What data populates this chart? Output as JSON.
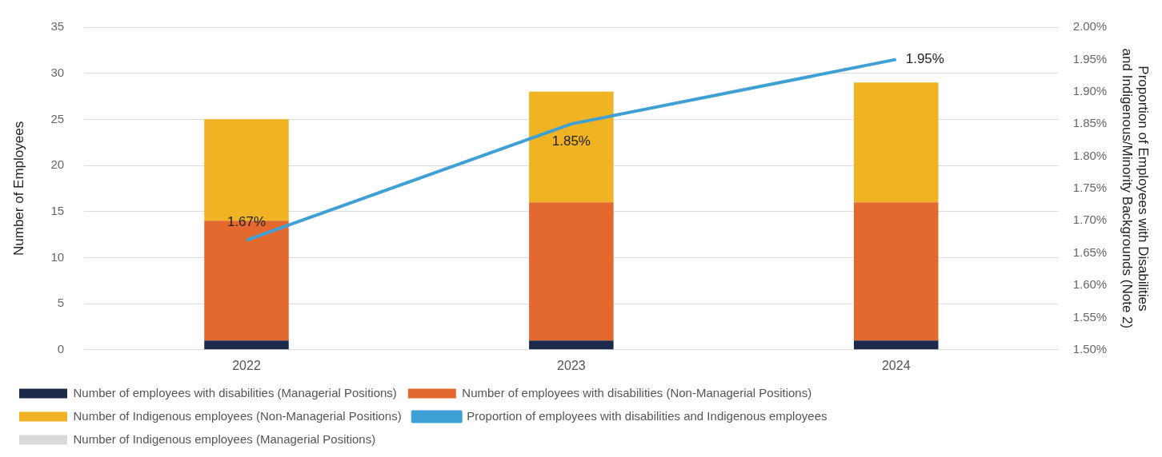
{
  "chart_data": {
    "type": "bar",
    "stacked": true,
    "categories": [
      "2022",
      "2023",
      "2024"
    ],
    "ylabel": "Number of Employees",
    "y2label": "Proportion of Employees with Disabilities and Indigenous/Minority Backgrounds (Note 2)",
    "ylim": [
      0,
      35
    ],
    "yticks": [
      0,
      5,
      10,
      15,
      20,
      25,
      30,
      35
    ],
    "y2lim": [
      1.5,
      2.0
    ],
    "y2ticks": [
      {
        "value": 1.5,
        "label": "1.50%"
      },
      {
        "value": 1.55,
        "label": "1.55%"
      },
      {
        "value": 1.6,
        "label": "1.60%"
      },
      {
        "value": 1.65,
        "label": "1.65%"
      },
      {
        "value": 1.7,
        "label": "1.70%"
      },
      {
        "value": 1.75,
        "label": "1.75%"
      },
      {
        "value": 1.8,
        "label": "1.80%"
      },
      {
        "value": 1.85,
        "label": "1.85%"
      },
      {
        "value": 1.9,
        "label": "1.90%"
      },
      {
        "value": 1.95,
        "label": "1.95%"
      },
      {
        "value": 2.0,
        "label": "2.00%"
      }
    ],
    "grid": "y",
    "legend": "bottom",
    "series": [
      {
        "name": "Number of employees with disabilities (Managerial Positions)",
        "color": "#1b2a4a",
        "values": [
          1,
          1,
          1
        ]
      },
      {
        "name": "Number of employees with disabilities (Non-Managerial Positions)",
        "color": "#e3692e",
        "values": [
          13,
          15,
          15
        ]
      },
      {
        "name": "Number of Indigenous employees (Non-Managerial Positions)",
        "color": "#f0b323",
        "values": [
          11,
          12,
          13
        ]
      },
      {
        "name": "Proportion of employees with disabilities and Indigenous employees",
        "color": "#3fa0d6",
        "type": "line",
        "axis": "y2",
        "marker": "none",
        "values": [
          1.67,
          1.85,
          1.95
        ],
        "value_labels": [
          "1.67%",
          "1.85%",
          "1.95%"
        ]
      },
      {
        "name": "Number of Indigenous employees (Managerial Positions)",
        "color": "#d9d9d9",
        "values": [
          0,
          0,
          0
        ]
      }
    ]
  }
}
